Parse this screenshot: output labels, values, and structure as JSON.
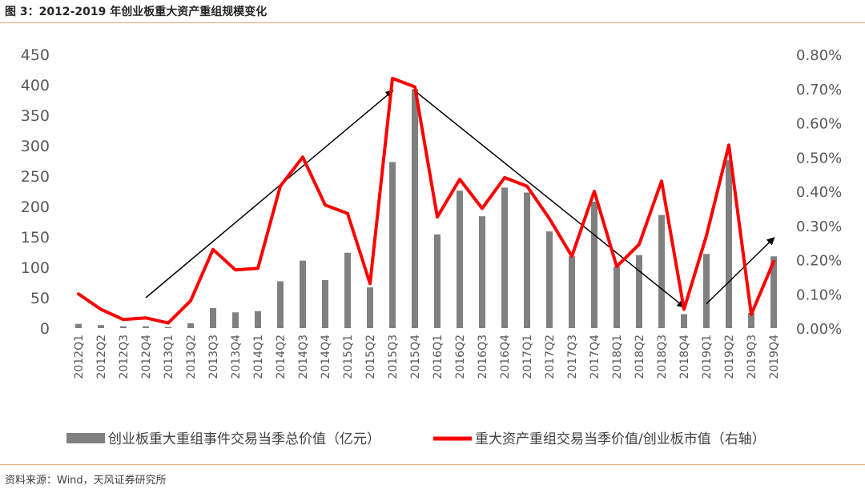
{
  "figure": {
    "title": "图 3：2012-2019 年创业板重大资产重组规模变化",
    "source": "资料来源：Wind，天风证券研究所"
  },
  "colors": {
    "bar": "#808080",
    "line": "#ff0000",
    "arrow": "#000000",
    "rule": "#e8a77a"
  },
  "chart_data": {
    "type": "bar+line",
    "grid": false,
    "legend_position": "bottom",
    "categories": [
      "2012Q1",
      "2012Q2",
      "2012Q3",
      "2012Q4",
      "2013Q1",
      "2013Q2",
      "2013Q3",
      "2013Q4",
      "2014Q1",
      "2014Q2",
      "2014Q3",
      "2014Q4",
      "2015Q1",
      "2015Q2",
      "2015Q3",
      "2015Q4",
      "2016Q1",
      "2016Q2",
      "2016Q3",
      "2016Q4",
      "2017Q1",
      "2017Q2",
      "2017Q3",
      "2017Q4",
      "2018Q1",
      "2018Q2",
      "2018Q3",
      "2018Q4",
      "2019Q1",
      "2019Q2",
      "2019Q3",
      "2019Q4"
    ],
    "y_left": {
      "ylim": [
        0,
        450
      ],
      "ticks": [
        "0",
        "50",
        "100",
        "150",
        "200",
        "250",
        "300",
        "350",
        "400",
        "450"
      ]
    },
    "y_right": {
      "ylim": [
        0,
        0.8
      ],
      "ticks": [
        "0.00%",
        "0.10%",
        "0.20%",
        "0.30%",
        "0.40%",
        "0.50%",
        "0.60%",
        "0.70%",
        "0.80%"
      ]
    },
    "series": [
      {
        "name": "创业板重大重组事件交易当季总价值（亿元）",
        "type": "bar",
        "axis": "left",
        "values": [
          7,
          5,
          3,
          3,
          2,
          8,
          33,
          26,
          28,
          77,
          111,
          79,
          124,
          67,
          273,
          393,
          154,
          226,
          184,
          231,
          223,
          159,
          118,
          208,
          101,
          120,
          186,
          23,
          122,
          276,
          25,
          118
        ]
      },
      {
        "name": "重大资产重组交易当季价值/创业板市值（右轴）",
        "type": "line",
        "axis": "right",
        "values": [
          0.1,
          0.055,
          0.025,
          0.03,
          0.015,
          0.08,
          0.23,
          0.17,
          0.175,
          0.415,
          0.5,
          0.36,
          0.335,
          0.13,
          0.73,
          0.705,
          0.325,
          0.435,
          0.35,
          0.44,
          0.415,
          0.32,
          0.21,
          0.4,
          0.18,
          0.245,
          0.43,
          0.055,
          0.27,
          0.535,
          0.04,
          0.195
        ]
      }
    ],
    "annotations": [
      {
        "type": "arrow",
        "from": [
          "2012Q4",
          50
        ],
        "to": [
          "2015Q3",
          390
        ]
      },
      {
        "type": "arrow",
        "from": [
          "2015Q4",
          390
        ],
        "to": [
          "2018Q4",
          35
        ]
      },
      {
        "type": "arrow",
        "from": [
          "2019Q1",
          40
        ],
        "to": [
          "2019Q4",
          148
        ]
      }
    ]
  }
}
